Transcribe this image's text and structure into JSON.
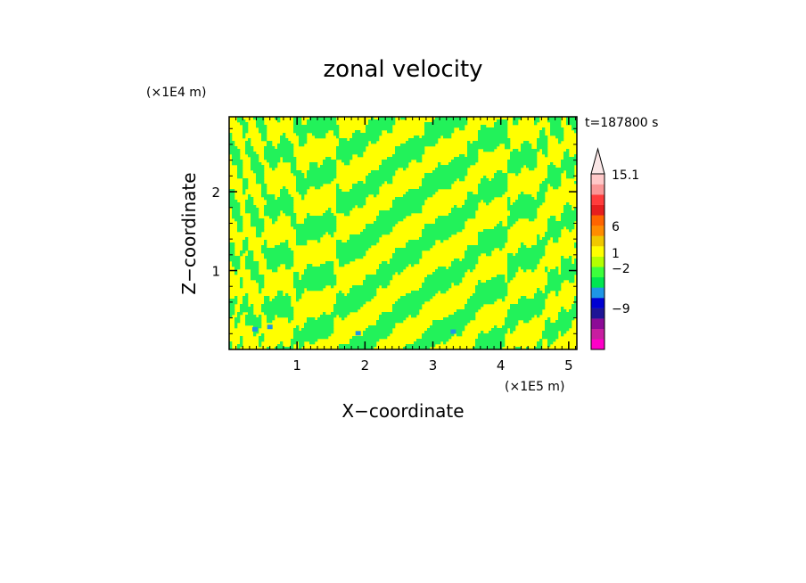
{
  "chart_data": {
    "type": "heatmap",
    "title": "zonal velocity",
    "xlabel": "X−coordinate",
    "ylabel": "Z−coordinate",
    "x_scale_label": "(×1E5 m)",
    "y_scale_label": "(×1E4 m)",
    "time_label": "t=187800 s",
    "xlim": [
      0,
      5.12
    ],
    "ylim": [
      0,
      2.95
    ],
    "x_ticks": [
      1,
      2,
      3,
      4,
      5
    ],
    "y_ticks": [
      1,
      2
    ],
    "x_tick_labels": [
      "1",
      "2",
      "3",
      "4",
      "5"
    ],
    "y_tick_labels": [
      "1",
      "2"
    ],
    "colorbar": {
      "colors": [
        "#ff00c8",
        "#c81ea0",
        "#8c0a96",
        "#1e1496",
        "#0000d2",
        "#1e96e6",
        "#00e650",
        "#3cff3c",
        "#b4ff00",
        "#ffff00",
        "#f0c800",
        "#ff8c00",
        "#ff6400",
        "#e61e1e",
        "#ff3c3c",
        "#fa9696",
        "#ffc8c8"
      ],
      "extend_top_color": "#fae6e6",
      "tick_labels": [
        "15.1",
        "6",
        "1",
        "−2",
        "−9"
      ],
      "tick_values": [
        15.1,
        6,
        1,
        -2,
        -9
      ]
    },
    "field_colors": {
      "positive": "#ffff00",
      "negative": "#22f25a",
      "strong_negative": "#1e96e6"
    }
  }
}
